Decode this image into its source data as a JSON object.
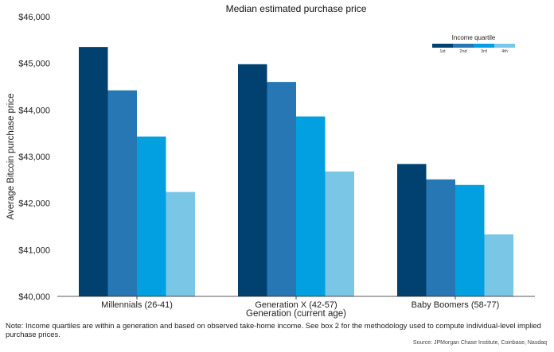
{
  "chart_data": {
    "type": "bar",
    "title": "Median estimated purchase price",
    "xlabel": "Generation (current age)",
    "ylabel": "Average Bitcoin purchase price",
    "ylim": [
      40000,
      46000
    ],
    "yticks": [
      "$40,000",
      "$41,000",
      "$42,000",
      "$43,000",
      "$44,000",
      "$45,000",
      "$46,000"
    ],
    "ytick_values": [
      40000,
      41000,
      42000,
      43000,
      44000,
      45000,
      46000
    ],
    "categories": [
      "Millennials (26-41)",
      "Generation X (42-57)",
      "Baby Boomers (58-77)"
    ],
    "legend_title": "Income quartile",
    "legend_position": "top-right",
    "grid": false,
    "series": [
      {
        "name": "1st",
        "color": "#00416f",
        "values": [
          45350,
          44980,
          42840
        ]
      },
      {
        "name": "2nd",
        "color": "#2777b4",
        "values": [
          44420,
          44600,
          42510
        ]
      },
      {
        "name": "3rd",
        "color": "#02a0e0",
        "values": [
          43430,
          43860,
          42390
        ]
      },
      {
        "name": "4th",
        "color": "#7ac6e7",
        "values": [
          42240,
          42680,
          41330
        ]
      }
    ]
  },
  "footer": {
    "note": "Note: Income quartiles are within a generation and based on observed take-home income. See box 2 for the methodology used to compute individual-level implied purchase prices.",
    "source": "Source: JPMorgan Chase Institute, Coinbase, Nasdaq"
  }
}
